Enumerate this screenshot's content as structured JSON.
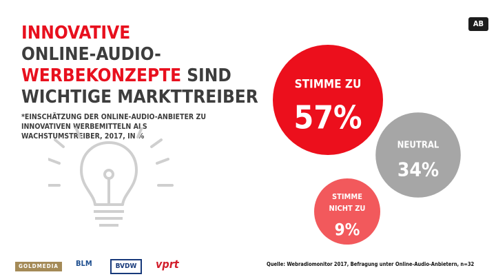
{
  "badge": "AB",
  "headline": {
    "line1": "Innovative",
    "line2": "Online-Audio-",
    "line3_red": "Werbekonzepte",
    "line3_rest": " sind",
    "line4": "wichtige Markttreiber"
  },
  "subtitle": "*Einschätzung der Online-Audio-Anbieter zu innovativen Werbemitteln als Wachstumstreiber, 2017, in %",
  "source": "Quelle: Webradiomonitor 2017, Befragung unter Online-Audio-Anbietern, n=32",
  "chart_data": {
    "type": "bubble",
    "unit": "%",
    "categories": [
      "Stimme zu",
      "Neutral",
      "Stimme nicht zu"
    ],
    "values": [
      57,
      34,
      9
    ],
    "labels": [
      "57%",
      "34%",
      "9%"
    ],
    "label_lines": [
      [
        "STIMME ZU"
      ],
      [
        "NEUTRAL"
      ],
      [
        "STIMME",
        "NICHT ZU"
      ]
    ],
    "colors": [
      "#ec0f1c",
      "#a6a6a6",
      "#f2595c"
    ]
  },
  "logos": {
    "goldmedia": "GOLDMEDIA",
    "blm": "BLM",
    "bvdw": "BVDW",
    "vprt": "vprt"
  },
  "icons": {
    "illustration": "lightbulb-icon"
  }
}
